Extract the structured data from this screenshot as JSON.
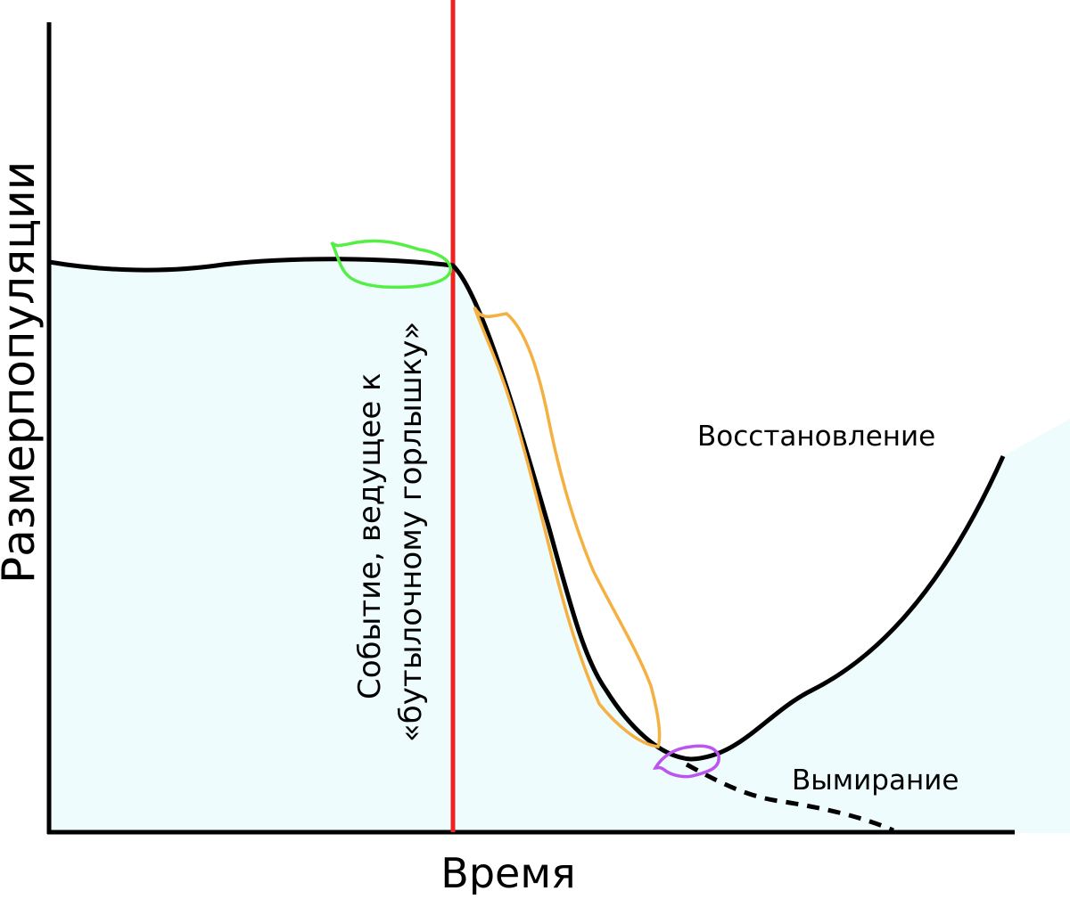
{
  "diagram": {
    "y_axis_label": "Размерпопуляции",
    "x_axis_label": "Время",
    "event_label_line1": "Событие, ведущее к",
    "event_label_line2": "«бутылочному горлышку»",
    "recovery_label": "Восстановление",
    "extinction_label": "Вымирание"
  },
  "colors": {
    "population_fill": "#eefcfd",
    "event_line": "#ee2222",
    "highlight_stable": "#55ee44",
    "highlight_decline": "#f5b042",
    "highlight_minimum": "#bb55ee",
    "curve": "#000000"
  }
}
